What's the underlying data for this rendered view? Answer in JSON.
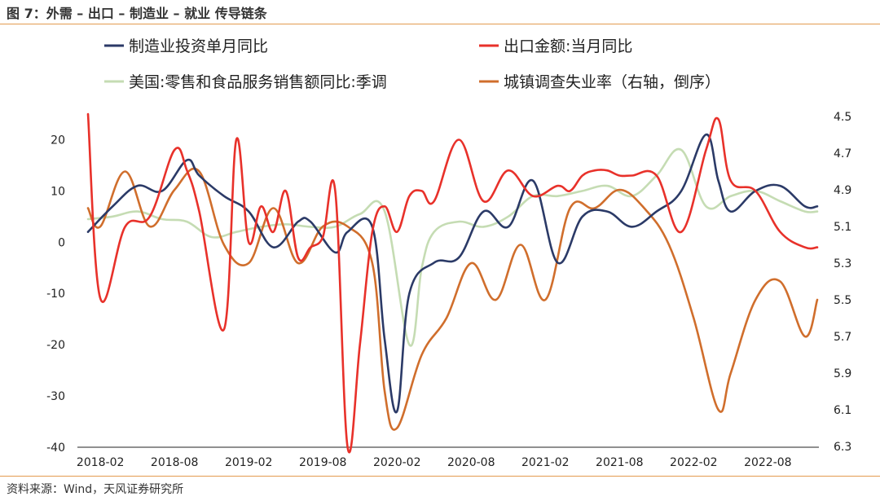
{
  "header": {
    "title": "图 7：外需 – 出口 – 制造业 – 就业 传导链条"
  },
  "footer": {
    "source": "资料来源：Wind，天风证券研究所"
  },
  "chart_data": {
    "type": "line",
    "grid": false,
    "legend_position": "top",
    "x_ticks": [
      "2018-02",
      "2018-08",
      "2019-02",
      "2019-08",
      "2020-02",
      "2020-08",
      "2021-02",
      "2021-08",
      "2022-02",
      "2022-08"
    ],
    "y_left": {
      "ticks": [
        20,
        10,
        0,
        -10,
        -20,
        -30,
        -40
      ],
      "range": [
        -40,
        25
      ]
    },
    "y_right": {
      "ticks": [
        "4.5",
        "4.7",
        "4.9",
        "5.1",
        "5.3",
        "5.5",
        "5.7",
        "5.9",
        "6.1",
        "6.3"
      ],
      "range": [
        4.5,
        6.3
      ],
      "inverted": true
    },
    "series": [
      {
        "name": "制造业投资单月同比",
        "color": "#2b3a67",
        "axis": "left",
        "x": [
          "2018-01",
          "2018-03",
          "2018-05",
          "2018-07",
          "2018-09",
          "2018-10",
          "2018-12",
          "2019-02",
          "2019-04",
          "2019-06",
          "2019-07",
          "2019-09",
          "2019-10",
          "2019-12",
          "2020-01",
          "2020-02",
          "2020-03",
          "2020-05",
          "2020-07",
          "2020-09",
          "2020-11",
          "2021-01",
          "2021-03",
          "2021-05",
          "2021-07",
          "2021-09",
          "2021-11",
          "2022-01",
          "2022-03",
          "2022-04",
          "2022-05",
          "2022-07",
          "2022-09",
          "2022-11",
          "2022-12"
        ],
        "y": [
          2,
          7,
          11,
          10,
          16,
          13,
          9,
          6,
          -1,
          4,
          4,
          -2,
          2,
          3,
          -19,
          -33,
          -10,
          -4,
          -3,
          6,
          3,
          12,
          -4,
          5,
          6,
          3,
          6,
          10,
          21,
          12,
          6,
          10,
          11,
          7,
          7
        ]
      },
      {
        "name": "出口金额:当月同比",
        "color": "#e8312a",
        "axis": "left",
        "x": [
          "2018-01",
          "2018-02",
          "2018-04",
          "2018-06",
          "2018-08",
          "2018-09",
          "2018-10",
          "2018-12",
          "2019-01",
          "2019-02",
          "2019-03",
          "2019-04",
          "2019-05",
          "2019-06",
          "2019-07",
          "2019-08",
          "2019-09",
          "2019-10",
          "2019-11",
          "2019-12",
          "2020-01",
          "2020-02",
          "2020-03",
          "2020-04",
          "2020-05",
          "2020-07",
          "2020-09",
          "2020-11",
          "2021-01",
          "2021-03",
          "2021-04",
          "2021-05",
          "2021-06",
          "2021-07",
          "2021-08",
          "2021-09",
          "2021-11",
          "2022-01",
          "2022-03",
          "2022-04",
          "2022-05",
          "2022-07",
          "2022-09",
          "2022-11",
          "2022-12"
        ],
        "y": [
          25,
          -11,
          3,
          5,
          18,
          14,
          6,
          -17,
          20,
          0,
          7,
          2,
          10,
          -3,
          -1,
          1,
          10,
          -40,
          -20,
          2,
          7,
          2,
          9,
          10,
          8,
          20,
          8,
          14,
          9,
          11,
          10,
          13,
          14,
          14,
          13,
          13,
          13,
          2,
          18,
          24,
          12,
          10,
          2,
          -1,
          -1
        ]
      },
      {
        "name": "美国:零售和食品服务销售额同比:季调",
        "color": "#c5dcb3",
        "axis": "left",
        "x": [
          "2018-01",
          "2018-03",
          "2018-05",
          "2018-07",
          "2018-09",
          "2018-11",
          "2019-01",
          "2019-03",
          "2019-05",
          "2019-07",
          "2019-09",
          "2019-11",
          "2020-01",
          "2020-03",
          "2020-04",
          "2020-05",
          "2020-07",
          "2020-09",
          "2020-11",
          "2021-01",
          "2021-03",
          "2021-05",
          "2021-07",
          "2021-09",
          "2021-11",
          "2022-01",
          "2022-03",
          "2022-05",
          "2022-07",
          "2022-09",
          "2022-11",
          "2022-12"
        ],
        "y": [
          4.5,
          5,
          6,
          4.5,
          4,
          1,
          2,
          3,
          3.5,
          3,
          3,
          5.5,
          6,
          -20,
          -5,
          2,
          4,
          3,
          5,
          9,
          9,
          10,
          11,
          9,
          13,
          18,
          7,
          9,
          10,
          8,
          6,
          6
        ]
      },
      {
        "name": "城镇调查失业率（右轴，倒序）",
        "color": "#d06e2c",
        "axis": "right",
        "x": [
          "2018-01",
          "2018-02",
          "2018-04",
          "2018-06",
          "2018-08",
          "2018-10",
          "2018-12",
          "2019-02",
          "2019-04",
          "2019-06",
          "2019-08",
          "2019-10",
          "2019-12",
          "2020-01",
          "2020-02",
          "2020-04",
          "2020-06",
          "2020-08",
          "2020-10",
          "2020-12",
          "2021-02",
          "2021-04",
          "2021-06",
          "2021-08",
          "2021-10",
          "2021-12",
          "2022-02",
          "2022-04",
          "2022-05",
          "2022-07",
          "2022-09",
          "2022-11",
          "2022-12"
        ],
        "y": [
          5.0,
          5.1,
          4.8,
          5.1,
          4.9,
          4.8,
          5.2,
          5.3,
          5.0,
          5.3,
          5.1,
          5.1,
          5.3,
          6.0,
          6.2,
          5.8,
          5.6,
          5.3,
          5.5,
          5.2,
          5.5,
          5.0,
          5.0,
          4.9,
          5.0,
          5.2,
          5.6,
          6.1,
          5.9,
          5.5,
          5.4,
          5.7,
          5.5
        ]
      }
    ]
  }
}
